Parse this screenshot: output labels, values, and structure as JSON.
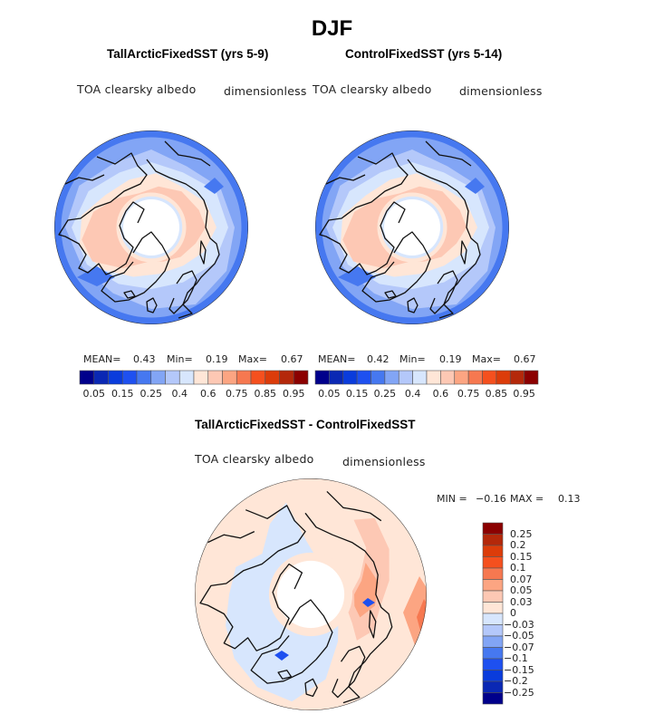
{
  "title": "DJF",
  "chart_data": [
    {
      "type": "heatmap",
      "projection": "north-polar-stereographic",
      "title": "TallArcticFixedSST (yrs 5-9)",
      "variable": "TOA clearsky albedo",
      "units": "dimensionless",
      "stats": {
        "mean_label": "MEAN=",
        "mean": "0.43",
        "min_label": "Min=",
        "min": "0.19",
        "max_label": "Max=",
        "max": "0.67"
      },
      "colorbar": {
        "orientation": "horizontal",
        "levels": [
          0.05,
          0.1,
          0.15,
          0.2,
          0.25,
          0.3,
          0.4,
          0.5,
          0.6,
          0.7,
          0.75,
          0.8,
          0.85,
          0.9,
          0.95
        ],
        "tick_labels": [
          "0.05",
          "0.15",
          "0.25",
          "0.4",
          "0.6",
          "0.75",
          "0.85",
          "0.95"
        ],
        "colors": [
          "#00008b",
          "#0a28b4",
          "#0a3cdc",
          "#1e50f0",
          "#4678f0",
          "#82a5f5",
          "#b4c8fa",
          "#d7e6fd",
          "#ffe6d7",
          "#fdc8b4",
          "#fca582",
          "#f67850",
          "#f5501e",
          "#dc3c0a",
          "#b4280a",
          "#8b0000"
        ]
      },
      "pattern": "high albedo (0.5-0.6) over Arctic land and sea ice; 0.25-0.4 over mid-latitude oceans; missing data at pole"
    },
    {
      "type": "heatmap",
      "projection": "north-polar-stereographic",
      "title": "ControlFixedSST (yrs 5-14)",
      "variable": "TOA clearsky albedo",
      "units": "dimensionless",
      "stats": {
        "mean_label": "MEAN=",
        "mean": "0.42",
        "min_label": "Min=",
        "min": "0.19",
        "max_label": "Max=",
        "max": "0.67"
      },
      "colorbar": {
        "orientation": "horizontal",
        "levels": [
          0.05,
          0.1,
          0.15,
          0.2,
          0.25,
          0.3,
          0.4,
          0.5,
          0.6,
          0.7,
          0.75,
          0.8,
          0.85,
          0.9,
          0.95
        ],
        "tick_labels": [
          "0.05",
          "0.15",
          "0.25",
          "0.4",
          "0.6",
          "0.75",
          "0.85",
          "0.95"
        ],
        "colors": [
          "#00008b",
          "#0a28b4",
          "#0a3cdc",
          "#1e50f0",
          "#4678f0",
          "#82a5f5",
          "#b4c8fa",
          "#d7e6fd",
          "#ffe6d7",
          "#fdc8b4",
          "#fca582",
          "#f67850",
          "#f5501e",
          "#dc3c0a",
          "#b4280a",
          "#8b0000"
        ]
      },
      "pattern": "similar to TallArcticFixedSST"
    },
    {
      "type": "heatmap",
      "projection": "north-polar-stereographic",
      "title": "TallArcticFixedSST - ControlFixedSST",
      "variable": "TOA clearsky albedo",
      "units": "dimensionless",
      "stats": {
        "min_label": "MIN =",
        "min": "−0.16",
        "max_label": "MAX =",
        "max": "0.13"
      },
      "colorbar": {
        "orientation": "vertical",
        "levels": [
          -0.25,
          -0.2,
          -0.15,
          -0.1,
          -0.07,
          -0.05,
          -0.03,
          0,
          0.03,
          0.05,
          0.07,
          0.1,
          0.15,
          0.2,
          0.25
        ],
        "tick_labels": [
          "0.25",
          "0.2",
          "0.15",
          "0.1",
          "0.07",
          "0.05",
          "0.03",
          "0",
          "−0.03",
          "−0.05",
          "−0.07",
          "−0.1",
          "−0.15",
          "−0.2",
          "−0.25"
        ],
        "colors_top_to_bottom": [
          "#8b0000",
          "#b4280a",
          "#dc3c0a",
          "#f5501e",
          "#f67850",
          "#fca582",
          "#fdc8b4",
          "#ffe6d7",
          "#d7e6fd",
          "#b4c8fa",
          "#82a5f5",
          "#4678f0",
          "#1e50f0",
          "#0a3cdc",
          "#0a28b4",
          "#00008b"
        ]
      },
      "pattern": "small positive (0 to 0.03) over most of hemisphere; 0.05-0.1 over Siberia/Eurasia; slight negative (-0.03 to 0) over North America and North Atlantic; local minimum near Iceland and Siberian coast"
    }
  ]
}
